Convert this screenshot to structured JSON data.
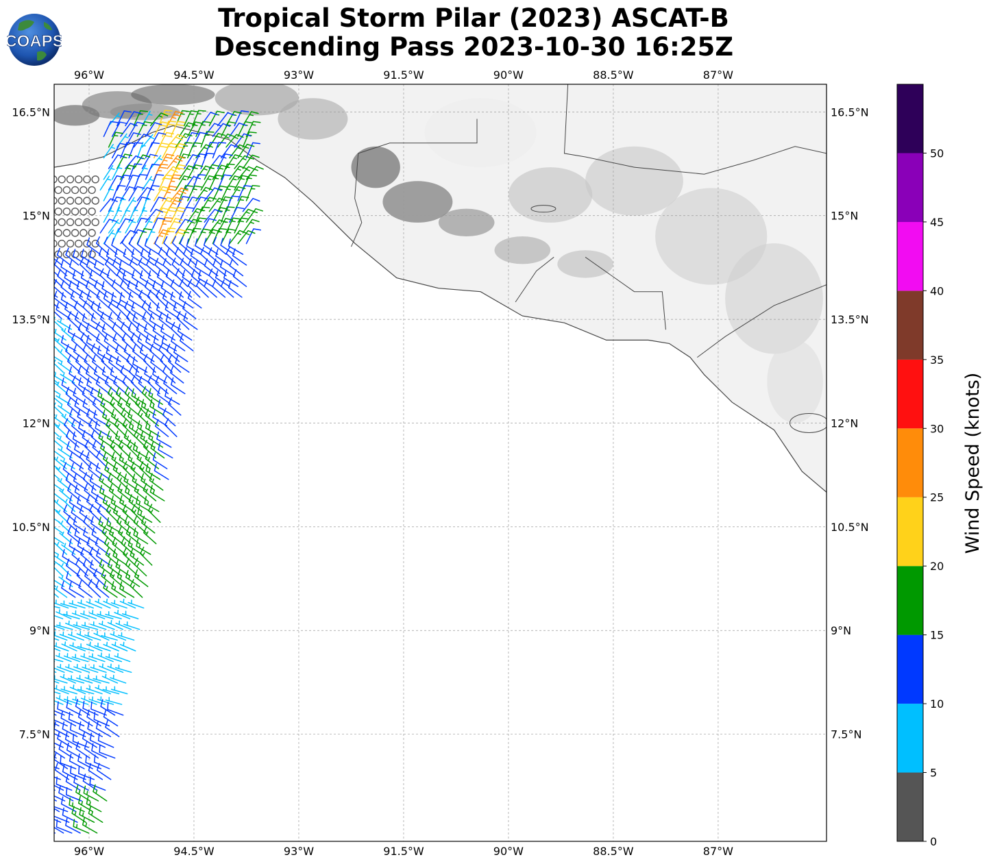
{
  "title": {
    "line1": "Tropical Storm Pilar (2023) ASCAT-B",
    "line2": "Descending Pass 2023-10-30 16:25Z"
  },
  "logo": {
    "text": "COAPS",
    "icon": "globe-logo-icon"
  },
  "map": {
    "lon_range": [
      -96.5,
      -85.45
    ],
    "lat_range": [
      5.95,
      16.9
    ],
    "lon_ticks": [
      {
        "value": -96,
        "label": "96°W"
      },
      {
        "value": -94.5,
        "label": "94.5°W"
      },
      {
        "value": -93,
        "label": "93°W"
      },
      {
        "value": -91.5,
        "label": "91.5°W"
      },
      {
        "value": -90,
        "label": "90°W"
      },
      {
        "value": -88.5,
        "label": "88.5°W"
      },
      {
        "value": -87,
        "label": "87°W"
      }
    ],
    "lat_ticks": [
      {
        "value": 16.5,
        "label": "16.5°N"
      },
      {
        "value": 15,
        "label": "15°N"
      },
      {
        "value": 13.5,
        "label": "13.5°N"
      },
      {
        "value": 12,
        "label": "12°N"
      },
      {
        "value": 10.5,
        "label": "10.5°N"
      },
      {
        "value": 9,
        "label": "9°N"
      },
      {
        "value": 7.5,
        "label": "7.5°N"
      }
    ],
    "grid": true,
    "land_shading": "grayscale elevation",
    "coastline_color": "#444444"
  },
  "colorbar": {
    "label": "Wind Speed (knots)",
    "ticks": [
      "0",
      "5",
      "10",
      "15",
      "20",
      "25",
      "30",
      "35",
      "40",
      "45",
      "50"
    ],
    "bins": [
      {
        "from": 0,
        "to": 5,
        "color": "#555555"
      },
      {
        "from": 5,
        "to": 10,
        "color": "#00bfff"
      },
      {
        "from": 10,
        "to": 15,
        "color": "#0039ff"
      },
      {
        "from": 15,
        "to": 20,
        "color": "#009900"
      },
      {
        "from": 20,
        "to": 25,
        "color": "#ffd21a"
      },
      {
        "from": 25,
        "to": 30,
        "color": "#ff8c0a"
      },
      {
        "from": 30,
        "to": 35,
        "color": "#ff1010"
      },
      {
        "from": 35,
        "to": 40,
        "color": "#7f3a2a"
      },
      {
        "from": 40,
        "to": 45,
        "color": "#f20cf2"
      },
      {
        "from": 45,
        "to": 50,
        "color": "#8a00b8"
      },
      {
        "from": 50,
        "to": 55,
        "color": "#2e0059"
      }
    ]
  }
}
